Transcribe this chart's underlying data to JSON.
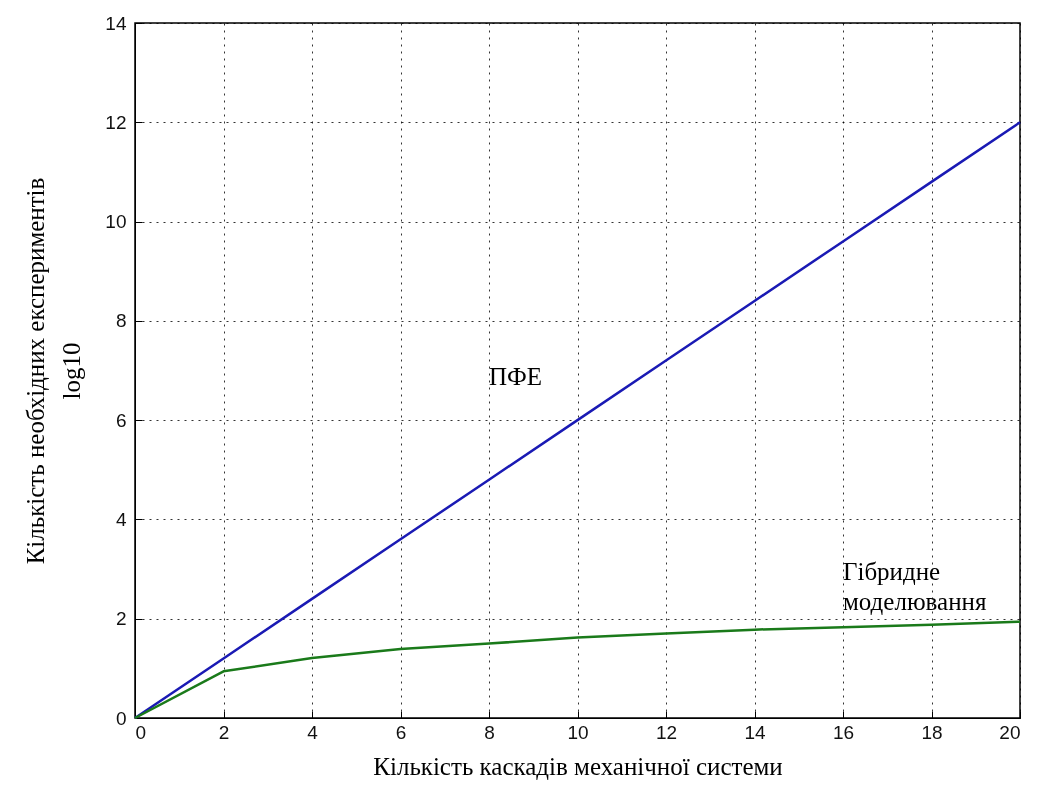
{
  "chart_data": {
    "type": "line",
    "xlabel": "Кількість каскадів механічної системи",
    "ylabel": "Кількість необхідних експериментів\nlog10",
    "x": [
      0,
      2,
      4,
      6,
      8,
      10,
      12,
      14,
      16,
      18,
      20
    ],
    "series": [
      {
        "name": "ПФЕ",
        "color": "#1a1ab4",
        "values": [
          0,
          1.2,
          2.4,
          3.6,
          4.8,
          6,
          7.2,
          8.4,
          9.6,
          10.8,
          12
        ]
      },
      {
        "name": "Гібридне моделювання",
        "color": "#1a7a1a",
        "values": [
          0,
          0.94,
          1.21,
          1.39,
          1.5,
          1.62,
          1.7,
          1.78,
          1.83,
          1.88,
          1.94
        ]
      }
    ],
    "xlim": [
      0,
      20
    ],
    "xticks": [
      0,
      2,
      4,
      6,
      8,
      10,
      12,
      14,
      16,
      18,
      20
    ],
    "ylim": [
      0,
      14
    ],
    "yticks": [
      0,
      2,
      4,
      6,
      8,
      10,
      12,
      14
    ],
    "grid": true,
    "line_style": "solid",
    "marker": "none"
  }
}
